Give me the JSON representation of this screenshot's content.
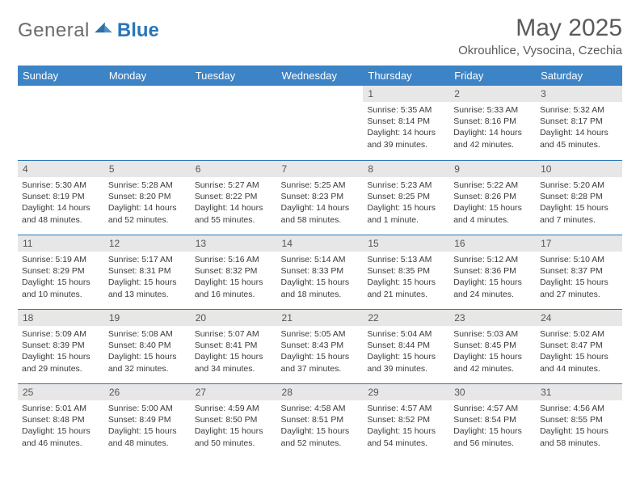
{
  "brand": {
    "word1": "General",
    "word2": "Blue"
  },
  "title": "May 2025",
  "location": "Okrouhlice, Vysocina, Czechia",
  "colors": {
    "header_bg": "#3c84c6",
    "header_text": "#ffffff",
    "daynum_bg": "#e7e7e7",
    "row_divider": "#2a76b8",
    "body_text": "#3b3b3b",
    "title_text": "#5a5a5a"
  },
  "typography": {
    "title_fontsize": 30,
    "location_fontsize": 15,
    "header_fontsize": 13,
    "daynum_fontsize": 12,
    "cell_fontsize": 10.5
  },
  "weekdays": [
    "Sunday",
    "Monday",
    "Tuesday",
    "Wednesday",
    "Thursday",
    "Friday",
    "Saturday"
  ],
  "weeks": [
    [
      null,
      null,
      null,
      null,
      {
        "n": "1",
        "sr": "5:35 AM",
        "ss": "8:14 PM",
        "dl": "14 hours and 39 minutes."
      },
      {
        "n": "2",
        "sr": "5:33 AM",
        "ss": "8:16 PM",
        "dl": "14 hours and 42 minutes."
      },
      {
        "n": "3",
        "sr": "5:32 AM",
        "ss": "8:17 PM",
        "dl": "14 hours and 45 minutes."
      }
    ],
    [
      {
        "n": "4",
        "sr": "5:30 AM",
        "ss": "8:19 PM",
        "dl": "14 hours and 48 minutes."
      },
      {
        "n": "5",
        "sr": "5:28 AM",
        "ss": "8:20 PM",
        "dl": "14 hours and 52 minutes."
      },
      {
        "n": "6",
        "sr": "5:27 AM",
        "ss": "8:22 PM",
        "dl": "14 hours and 55 minutes."
      },
      {
        "n": "7",
        "sr": "5:25 AM",
        "ss": "8:23 PM",
        "dl": "14 hours and 58 minutes."
      },
      {
        "n": "8",
        "sr": "5:23 AM",
        "ss": "8:25 PM",
        "dl": "15 hours and 1 minute."
      },
      {
        "n": "9",
        "sr": "5:22 AM",
        "ss": "8:26 PM",
        "dl": "15 hours and 4 minutes."
      },
      {
        "n": "10",
        "sr": "5:20 AM",
        "ss": "8:28 PM",
        "dl": "15 hours and 7 minutes."
      }
    ],
    [
      {
        "n": "11",
        "sr": "5:19 AM",
        "ss": "8:29 PM",
        "dl": "15 hours and 10 minutes."
      },
      {
        "n": "12",
        "sr": "5:17 AM",
        "ss": "8:31 PM",
        "dl": "15 hours and 13 minutes."
      },
      {
        "n": "13",
        "sr": "5:16 AM",
        "ss": "8:32 PM",
        "dl": "15 hours and 16 minutes."
      },
      {
        "n": "14",
        "sr": "5:14 AM",
        "ss": "8:33 PM",
        "dl": "15 hours and 18 minutes."
      },
      {
        "n": "15",
        "sr": "5:13 AM",
        "ss": "8:35 PM",
        "dl": "15 hours and 21 minutes."
      },
      {
        "n": "16",
        "sr": "5:12 AM",
        "ss": "8:36 PM",
        "dl": "15 hours and 24 minutes."
      },
      {
        "n": "17",
        "sr": "5:10 AM",
        "ss": "8:37 PM",
        "dl": "15 hours and 27 minutes."
      }
    ],
    [
      {
        "n": "18",
        "sr": "5:09 AM",
        "ss": "8:39 PM",
        "dl": "15 hours and 29 minutes."
      },
      {
        "n": "19",
        "sr": "5:08 AM",
        "ss": "8:40 PM",
        "dl": "15 hours and 32 minutes."
      },
      {
        "n": "20",
        "sr": "5:07 AM",
        "ss": "8:41 PM",
        "dl": "15 hours and 34 minutes."
      },
      {
        "n": "21",
        "sr": "5:05 AM",
        "ss": "8:43 PM",
        "dl": "15 hours and 37 minutes."
      },
      {
        "n": "22",
        "sr": "5:04 AM",
        "ss": "8:44 PM",
        "dl": "15 hours and 39 minutes."
      },
      {
        "n": "23",
        "sr": "5:03 AM",
        "ss": "8:45 PM",
        "dl": "15 hours and 42 minutes."
      },
      {
        "n": "24",
        "sr": "5:02 AM",
        "ss": "8:47 PM",
        "dl": "15 hours and 44 minutes."
      }
    ],
    [
      {
        "n": "25",
        "sr": "5:01 AM",
        "ss": "8:48 PM",
        "dl": "15 hours and 46 minutes."
      },
      {
        "n": "26",
        "sr": "5:00 AM",
        "ss": "8:49 PM",
        "dl": "15 hours and 48 minutes."
      },
      {
        "n": "27",
        "sr": "4:59 AM",
        "ss": "8:50 PM",
        "dl": "15 hours and 50 minutes."
      },
      {
        "n": "28",
        "sr": "4:58 AM",
        "ss": "8:51 PM",
        "dl": "15 hours and 52 minutes."
      },
      {
        "n": "29",
        "sr": "4:57 AM",
        "ss": "8:52 PM",
        "dl": "15 hours and 54 minutes."
      },
      {
        "n": "30",
        "sr": "4:57 AM",
        "ss": "8:54 PM",
        "dl": "15 hours and 56 minutes."
      },
      {
        "n": "31",
        "sr": "4:56 AM",
        "ss": "8:55 PM",
        "dl": "15 hours and 58 minutes."
      }
    ]
  ],
  "labels": {
    "sunrise": "Sunrise: ",
    "sunset": "Sunset: ",
    "daylight": "Daylight: "
  }
}
